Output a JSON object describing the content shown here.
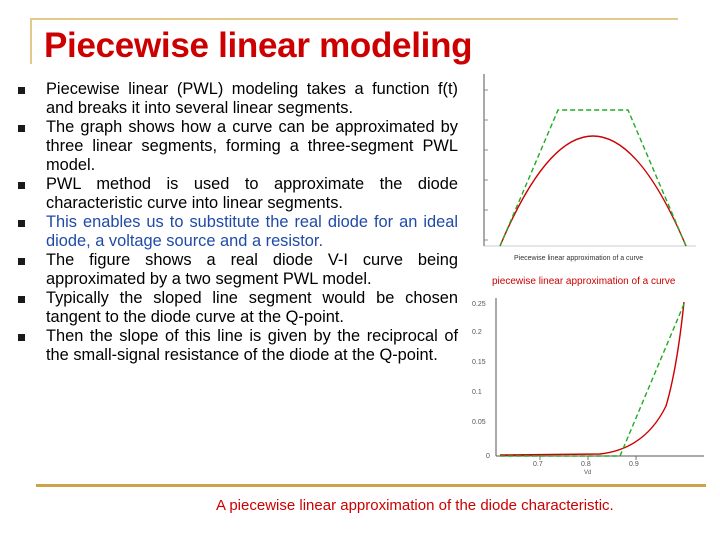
{
  "slide": {
    "title": "Piecewise linear modeling",
    "bullets": [
      "Piecewise linear (PWL) modeling takes a function f(t) and breaks it into several linear segments.",
      "The graph shows how a curve can be approximated by three linear segments, forming a three-segment PWL model.",
      "PWL method is used to approximate the diode characteristic curve into linear segments.",
      "This enables us to substitute the real diode for an ideal diode, a voltage source and a resistor.",
      "The figure shows a real diode V-I curve being approximated by a two segment PWL model.",
      "Typically the sloped line segment would be chosen tangent to the diode curve at the Q-point.",
      "Then the slope of this line is given by the reciprocal of the small-signal resistance of the diode at the Q-point."
    ],
    "highlight_bullet_color": "#1f4aa8",
    "title_color": "#cc0000"
  },
  "figure_top": {
    "inner_caption": "Piecewise linear approximation of a curve",
    "caption": "piecewise linear approximation of a curve",
    "curve_color": "#cc0000",
    "approx_color": "#22aa22"
  },
  "figure_bottom": {
    "y_ticks": [
      "0.25",
      "0.2",
      "0.15",
      "0.1",
      "0.05",
      "0"
    ],
    "x_ticks": [
      "0.7",
      "0.8",
      "0.9"
    ],
    "x_label": "Vd",
    "caption": "A piecewise linear approximation of the diode characteristic."
  }
}
